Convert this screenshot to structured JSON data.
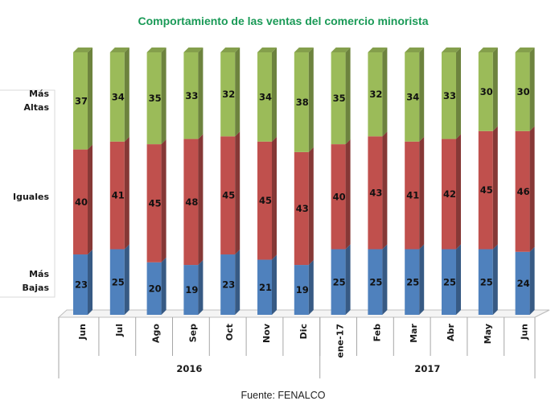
{
  "chart_data": {
    "type": "bar",
    "stacked": true,
    "style": "3d-column",
    "title": "Comportamiento de las ventas del comercio minorista",
    "source": "Fuente: FENALCO",
    "categories": [
      "Jun",
      "Jul",
      "Ago",
      "Sep",
      "Oct",
      "Nov",
      "Dic",
      "ene-17",
      "Feb",
      "Mar",
      "Abr",
      "May",
      "Jun"
    ],
    "groups": [
      {
        "label": "2016",
        "count": 7
      },
      {
        "label": "2017",
        "count": 6
      }
    ],
    "series": [
      {
        "name": "Más Bajas",
        "color": "#4f81bd",
        "values": [
          23,
          25,
          20,
          19,
          23,
          21,
          19,
          25,
          25,
          25,
          25,
          25,
          24
        ]
      },
      {
        "name": "Iguales",
        "color": "#c0504d",
        "values": [
          40,
          41,
          45,
          48,
          45,
          45,
          43,
          40,
          43,
          41,
          42,
          45,
          46
        ]
      },
      {
        "name": "Más Altas",
        "color": "#9bbb59",
        "values": [
          37,
          34,
          35,
          33,
          32,
          34,
          38,
          35,
          32,
          34,
          33,
          30,
          30
        ]
      }
    ],
    "legend": {
      "placement": "left",
      "entries": [
        {
          "lines": [
            "Más",
            "Altas"
          ]
        },
        {
          "lines": [
            "Iguales"
          ]
        },
        {
          "lines": [
            "Más",
            "Bajas"
          ]
        }
      ]
    },
    "ylim": [
      0,
      100
    ],
    "xlabel": "",
    "ylabel": "",
    "grid": false
  }
}
